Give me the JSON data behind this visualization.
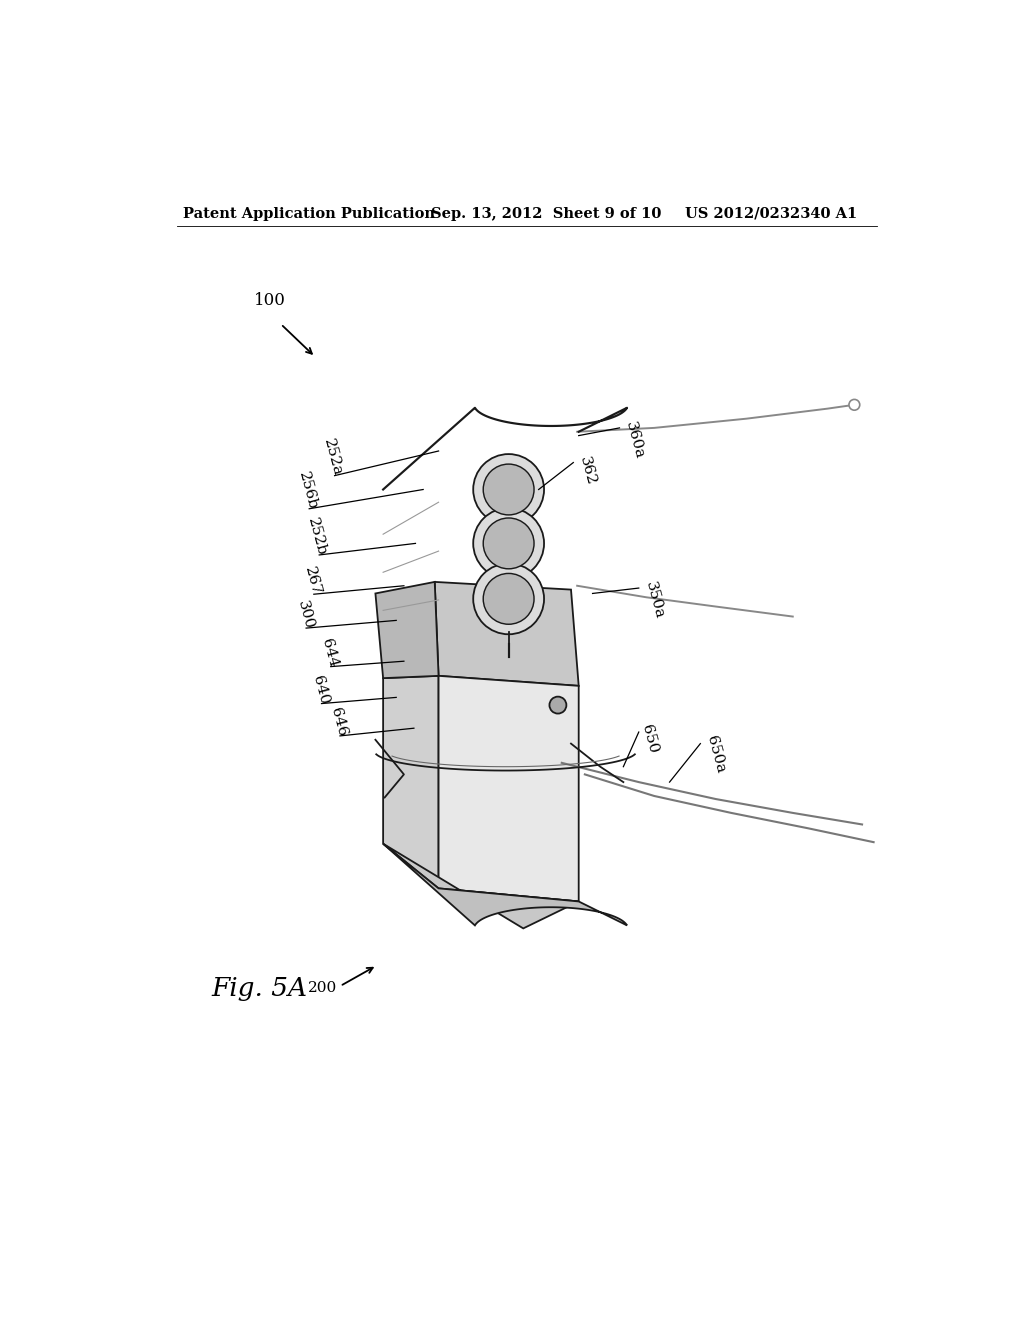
{
  "bg_color": "#ffffff",
  "header_left": "Patent Application Publication",
  "header_mid": "Sep. 13, 2012  Sheet 9 of 10",
  "header_right": "US 2012/0232340 A1",
  "fig_label": "Fig. 5A",
  "line_color": "#1a1a1a",
  "fill_front": "#e8e8e8",
  "fill_side": "#d0d0d0",
  "fill_top": "#c8c8c8",
  "fill_base": "#c0c0c0",
  "fill_circle_outer": "#d8d8d8",
  "fill_circle_inner": "#b8b8b8"
}
